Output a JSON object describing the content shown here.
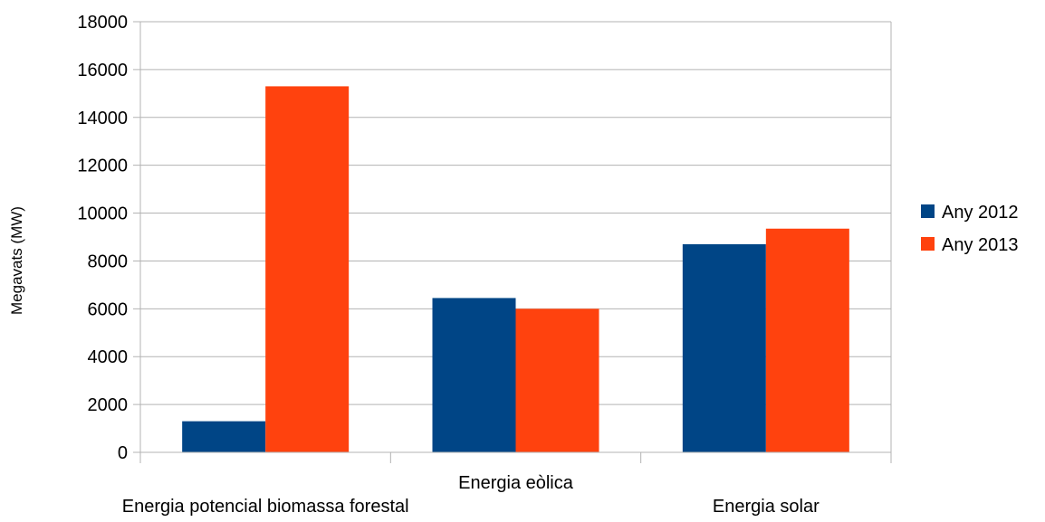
{
  "chart_data": {
    "type": "bar",
    "categories": [
      "Energia potencial biomassa forestal",
      "Energia eòlica",
      "Energia solar"
    ],
    "series": [
      {
        "name": "Any 2012",
        "color": "#004586",
        "values": [
          1300,
          6450,
          8700
        ]
      },
      {
        "name": "Any 2013",
        "color": "#ff420e",
        "values": [
          15300,
          6000,
          9350
        ]
      }
    ],
    "ylabel": "Megavats (MW)",
    "xlabel": "",
    "ylim": [
      0,
      18000
    ],
    "yticks": [
      0,
      2000,
      4000,
      6000,
      8000,
      10000,
      12000,
      14000,
      16000,
      18000
    ],
    "grid": true,
    "legend_position": "right"
  }
}
